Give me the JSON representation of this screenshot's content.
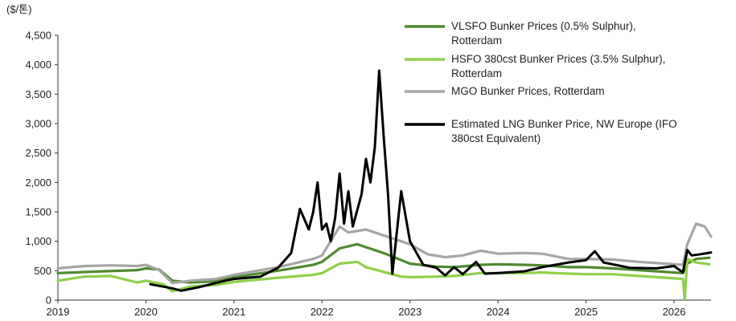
{
  "chart_data": {
    "type": "line",
    "unit_label": "($/톤)",
    "x_ticks": [
      "2019",
      "2020",
      "2021",
      "2022",
      "2023",
      "2024",
      "2025",
      "2026"
    ],
    "y_ticks": [
      "0",
      "500",
      "1,000",
      "1,500",
      "2,000",
      "2,500",
      "3,000",
      "3,500",
      "4,000",
      "4,500"
    ],
    "xlim": [
      2019.0,
      2026.42
    ],
    "ylim": [
      0,
      4500
    ],
    "legend_position": "top-right",
    "grid": false,
    "series": [
      {
        "name": "VLSFO Bunker Prices (0.5% Sulphur), Rotterdam",
        "legend_lines": [
          "VLSFO Bunker Prices (0.5% Sulphur),",
          "Rotterdam"
        ],
        "color": "#4e8a2f",
        "points": [
          [
            2019.0,
            460
          ],
          [
            2019.5,
            490
          ],
          [
            2019.9,
            510
          ],
          [
            2020.0,
            540
          ],
          [
            2020.15,
            520
          ],
          [
            2020.3,
            330
          ],
          [
            2020.5,
            300
          ],
          [
            2020.8,
            320
          ],
          [
            2021.0,
            390
          ],
          [
            2021.5,
            500
          ],
          [
            2021.9,
            600
          ],
          [
            2022.0,
            650
          ],
          [
            2022.2,
            880
          ],
          [
            2022.4,
            950
          ],
          [
            2022.5,
            900
          ],
          [
            2022.7,
            800
          ],
          [
            2022.9,
            680
          ],
          [
            2023.0,
            620
          ],
          [
            2023.3,
            570
          ],
          [
            2023.5,
            560
          ],
          [
            2023.8,
            600
          ],
          [
            2024.0,
            610
          ],
          [
            2024.3,
            600
          ],
          [
            2024.5,
            590
          ],
          [
            2024.8,
            560
          ],
          [
            2025.0,
            560
          ],
          [
            2025.3,
            540
          ],
          [
            2025.6,
            510
          ],
          [
            2025.9,
            480
          ],
          [
            2026.1,
            460
          ],
          [
            2026.15,
            620
          ],
          [
            2026.25,
            700
          ],
          [
            2026.4,
            720
          ]
        ]
      },
      {
        "name": "HSFO 380cst Bunker Prices (3.5% Sulphur), Rotterdam",
        "legend_lines": [
          "HSFO 380cst Bunker Prices (3.5% Sulphur),",
          "Rotterdam"
        ],
        "color": "#8fcf4a",
        "points": [
          [
            2019.0,
            330
          ],
          [
            2019.3,
            400
          ],
          [
            2019.6,
            410
          ],
          [
            2019.9,
            300
          ],
          [
            2020.0,
            330
          ],
          [
            2020.2,
            270
          ],
          [
            2020.3,
            150
          ],
          [
            2020.5,
            230
          ],
          [
            2020.8,
            260
          ],
          [
            2021.0,
            310
          ],
          [
            2021.5,
            380
          ],
          [
            2021.9,
            430
          ],
          [
            2022.0,
            460
          ],
          [
            2022.2,
            620
          ],
          [
            2022.4,
            650
          ],
          [
            2022.5,
            560
          ],
          [
            2022.7,
            480
          ],
          [
            2022.9,
            400
          ],
          [
            2023.0,
            390
          ],
          [
            2023.3,
            400
          ],
          [
            2023.5,
            410
          ],
          [
            2023.8,
            460
          ],
          [
            2024.0,
            460
          ],
          [
            2024.3,
            460
          ],
          [
            2024.5,
            470
          ],
          [
            2024.8,
            450
          ],
          [
            2025.0,
            440
          ],
          [
            2025.3,
            440
          ],
          [
            2025.6,
            410
          ],
          [
            2025.9,
            380
          ],
          [
            2026.1,
            360
          ],
          [
            2026.12,
            20
          ],
          [
            2026.15,
            700
          ],
          [
            2026.25,
            640
          ],
          [
            2026.4,
            610
          ]
        ]
      },
      {
        "name": "MGO Bunker Prices, Rotterdam",
        "legend_lines": [
          "MGO Bunker Prices, Rotterdam"
        ],
        "color": "#a6a6a6",
        "points": [
          [
            2019.0,
            540
          ],
          [
            2019.3,
            580
          ],
          [
            2019.6,
            590
          ],
          [
            2019.9,
            580
          ],
          [
            2020.0,
            600
          ],
          [
            2020.15,
            510
          ],
          [
            2020.3,
            290
          ],
          [
            2020.5,
            330
          ],
          [
            2020.8,
            360
          ],
          [
            2021.0,
            430
          ],
          [
            2021.5,
            560
          ],
          [
            2021.9,
            700
          ],
          [
            2022.0,
            760
          ],
          [
            2022.2,
            1250
          ],
          [
            2022.3,
            1150
          ],
          [
            2022.5,
            1200
          ],
          [
            2022.6,
            1150
          ],
          [
            2022.8,
            1050
          ],
          [
            2023.0,
            950
          ],
          [
            2023.2,
            780
          ],
          [
            2023.4,
            730
          ],
          [
            2023.6,
            760
          ],
          [
            2023.8,
            840
          ],
          [
            2024.0,
            790
          ],
          [
            2024.3,
            800
          ],
          [
            2024.5,
            790
          ],
          [
            2024.8,
            700
          ],
          [
            2025.0,
            700
          ],
          [
            2025.3,
            690
          ],
          [
            2025.6,
            650
          ],
          [
            2025.9,
            620
          ],
          [
            2026.1,
            600
          ],
          [
            2026.15,
            950
          ],
          [
            2026.25,
            1300
          ],
          [
            2026.35,
            1250
          ],
          [
            2026.42,
            1080
          ]
        ]
      },
      {
        "name": "Estimated LNG Bunker Price, NW Europe (IFO 380cst Equivalent)",
        "legend_lines": [
          "Estimated LNG Bunker Price, NW Europe (IFO",
          "380cst Equivalent)"
        ],
        "color": "#000000",
        "points": [
          [
            2020.05,
            270
          ],
          [
            2020.3,
            200
          ],
          [
            2020.4,
            160
          ],
          [
            2020.6,
            220
          ],
          [
            2020.9,
            330
          ],
          [
            2021.0,
            360
          ],
          [
            2021.3,
            400
          ],
          [
            2021.5,
            550
          ],
          [
            2021.65,
            800
          ],
          [
            2021.75,
            1550
          ],
          [
            2021.85,
            1200
          ],
          [
            2021.9,
            1500
          ],
          [
            2021.95,
            2000
          ],
          [
            2022.0,
            1200
          ],
          [
            2022.05,
            1300
          ],
          [
            2022.1,
            1000
          ],
          [
            2022.15,
            1400
          ],
          [
            2022.2,
            2150
          ],
          [
            2022.25,
            1300
          ],
          [
            2022.3,
            1850
          ],
          [
            2022.35,
            1250
          ],
          [
            2022.45,
            1800
          ],
          [
            2022.5,
            2400
          ],
          [
            2022.55,
            2000
          ],
          [
            2022.6,
            2600
          ],
          [
            2022.65,
            3900
          ],
          [
            2022.7,
            2800
          ],
          [
            2022.75,
            1800
          ],
          [
            2022.8,
            450
          ],
          [
            2022.9,
            1850
          ],
          [
            2023.0,
            1000
          ],
          [
            2023.15,
            600
          ],
          [
            2023.3,
            550
          ],
          [
            2023.4,
            420
          ],
          [
            2023.5,
            560
          ],
          [
            2023.6,
            440
          ],
          [
            2023.75,
            650
          ],
          [
            2023.85,
            450
          ],
          [
            2024.0,
            460
          ],
          [
            2024.3,
            490
          ],
          [
            2024.5,
            560
          ],
          [
            2024.8,
            640
          ],
          [
            2025.0,
            680
          ],
          [
            2025.1,
            830
          ],
          [
            2025.2,
            640
          ],
          [
            2025.5,
            550
          ],
          [
            2025.8,
            540
          ],
          [
            2026.0,
            580
          ],
          [
            2026.1,
            470
          ],
          [
            2026.15,
            850
          ],
          [
            2026.2,
            760
          ],
          [
            2026.3,
            780
          ],
          [
            2026.42,
            810
          ]
        ]
      }
    ]
  }
}
